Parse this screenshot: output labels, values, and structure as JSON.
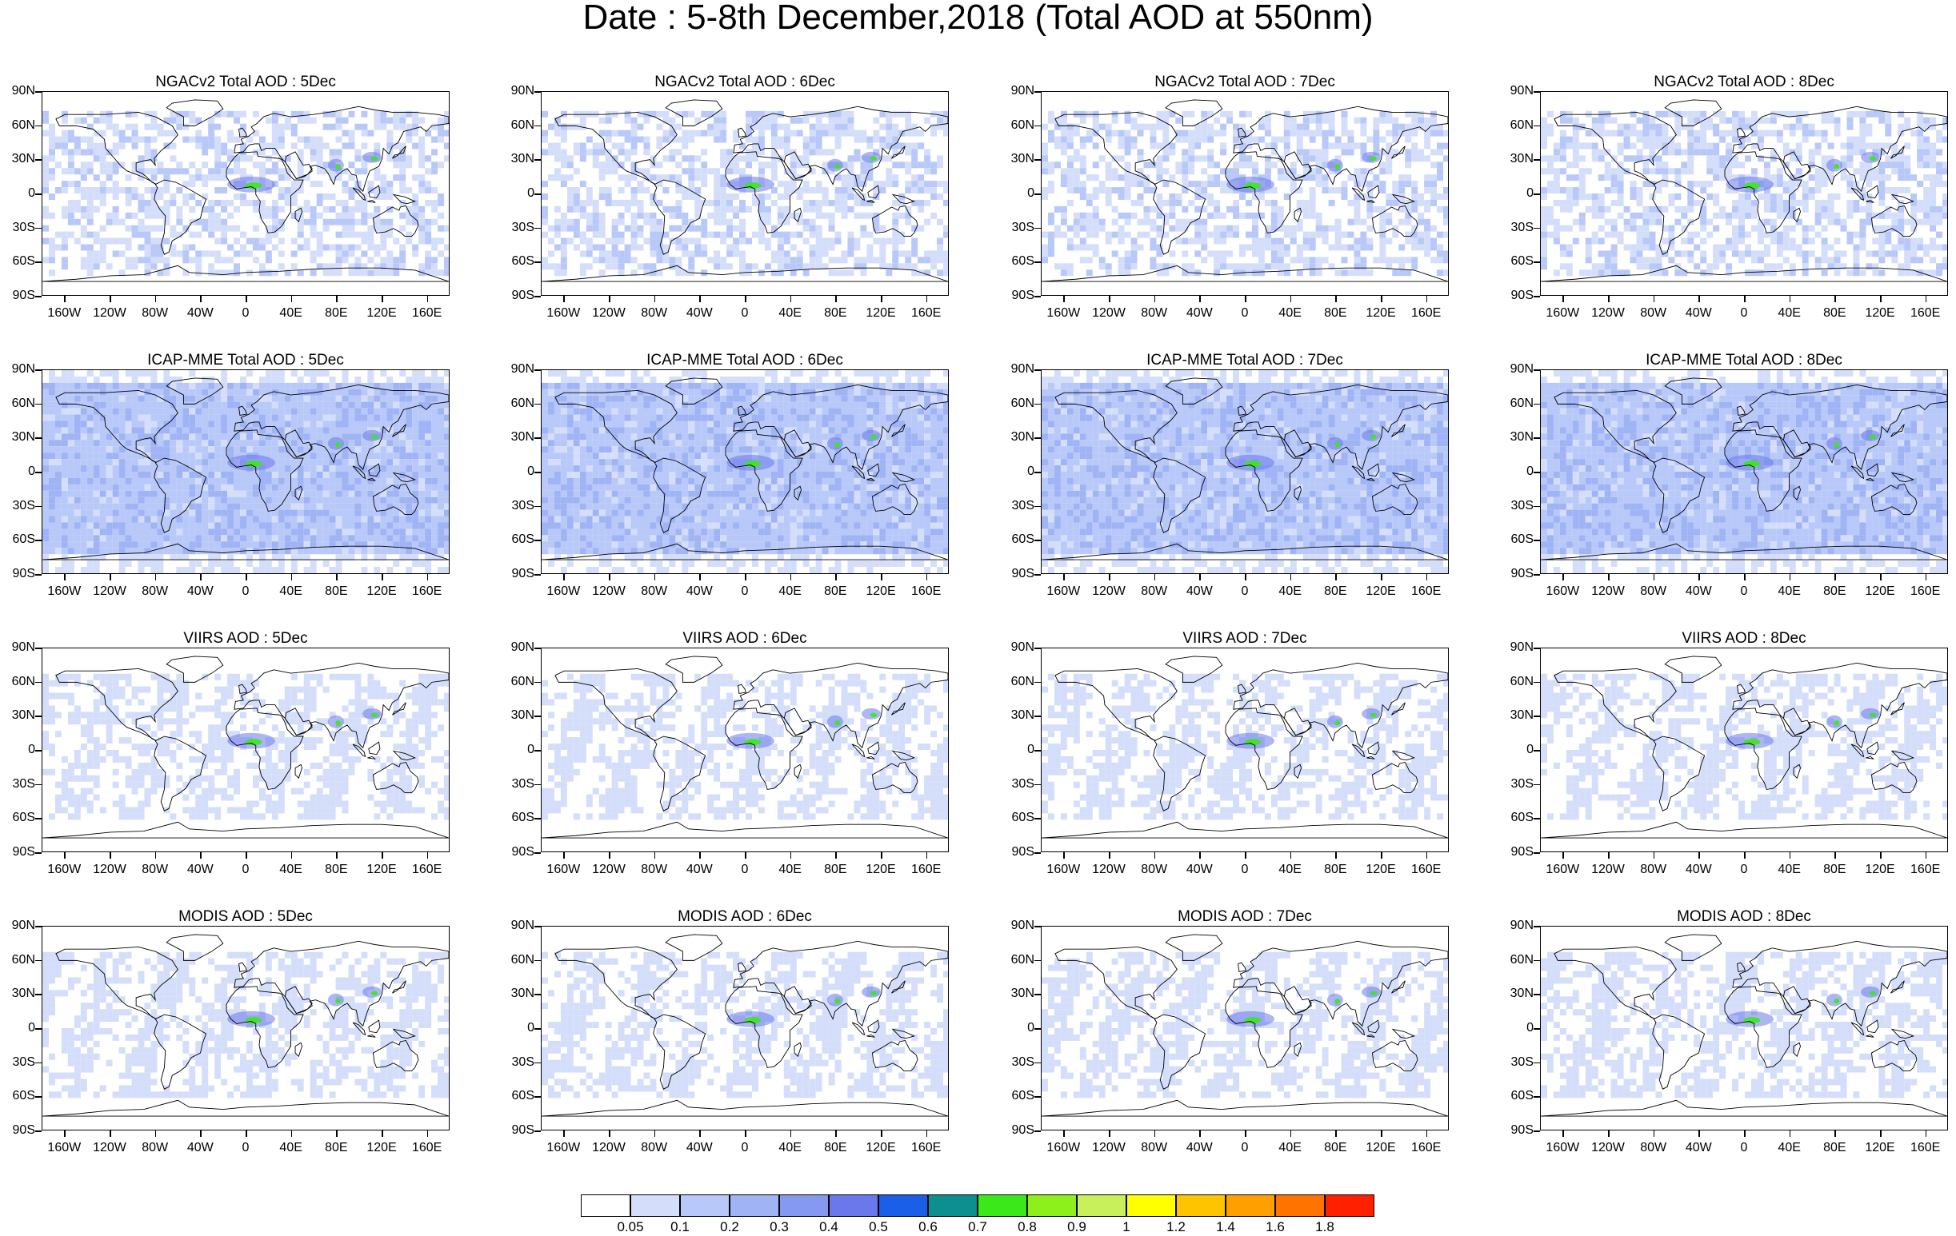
{
  "title": "Date : 5-8th December,2018 (Total AOD at 550nm)",
  "lat_labels": [
    "90N",
    "60N",
    "30N",
    "0",
    "30S",
    "60S",
    "90S"
  ],
  "lon_labels": [
    "160W",
    "120W",
    "80W",
    "40W",
    "0",
    "40E",
    "80E",
    "120E",
    "160E"
  ],
  "rows": [
    {
      "product": "NGACv2 Total AOD",
      "panels": [
        {
          "title": "NGACv2 Total AOD : 5Dec",
          "day": "5Dec"
        },
        {
          "title": "NGACv2 Total AOD : 6Dec",
          "day": "6Dec"
        },
        {
          "title": "NGACv2 Total AOD : 7Dec",
          "day": "7Dec"
        },
        {
          "title": "NGACv2 Total AOD : 8Dec",
          "day": "8Dec"
        }
      ]
    },
    {
      "product": "ICAP-MME Total AOD",
      "panels": [
        {
          "title": "ICAP-MME Total AOD : 5Dec",
          "day": "5Dec"
        },
        {
          "title": "ICAP-MME Total AOD : 6Dec",
          "day": "6Dec"
        },
        {
          "title": "ICAP-MME Total AOD : 7Dec",
          "day": "7Dec"
        },
        {
          "title": "ICAP-MME Total AOD : 8Dec",
          "day": "8Dec"
        }
      ]
    },
    {
      "product": "VIIRS AOD",
      "panels": [
        {
          "title": "VIIRS AOD : 5Dec",
          "day": "5Dec"
        },
        {
          "title": "VIIRS AOD : 6Dec",
          "day": "6Dec"
        },
        {
          "title": "VIIRS AOD : 7Dec",
          "day": "7Dec"
        },
        {
          "title": "VIIRS AOD : 8Dec",
          "day": "8Dec"
        }
      ]
    },
    {
      "product": "MODIS AOD",
      "panels": [
        {
          "title": "MODIS AOD : 5Dec",
          "day": "5Dec"
        },
        {
          "title": "MODIS AOD : 6Dec",
          "day": "6Dec"
        },
        {
          "title": "MODIS AOD : 7Dec",
          "day": "7Dec"
        },
        {
          "title": "MODIS AOD : 8Dec",
          "day": "8Dec"
        }
      ]
    }
  ],
  "colorbar": {
    "labels": [
      "0.05",
      "0.1",
      "0.2",
      "0.3",
      "0.4",
      "0.5",
      "0.6",
      "0.7",
      "0.8",
      "0.9",
      "1",
      "1.2",
      "1.4",
      "1.6",
      "1.8"
    ],
    "colors": [
      "#ffffff",
      "#d4defa",
      "#b8c8f8",
      "#9fb3f5",
      "#8599f0",
      "#6a78ec",
      "#1a5fe8",
      "#0e8f8f",
      "#3be81a",
      "#8ef01a",
      "#c8f05a",
      "#ffff00",
      "#ffc400",
      "#ffa000",
      "#ff7400",
      "#ff2000"
    ]
  }
}
